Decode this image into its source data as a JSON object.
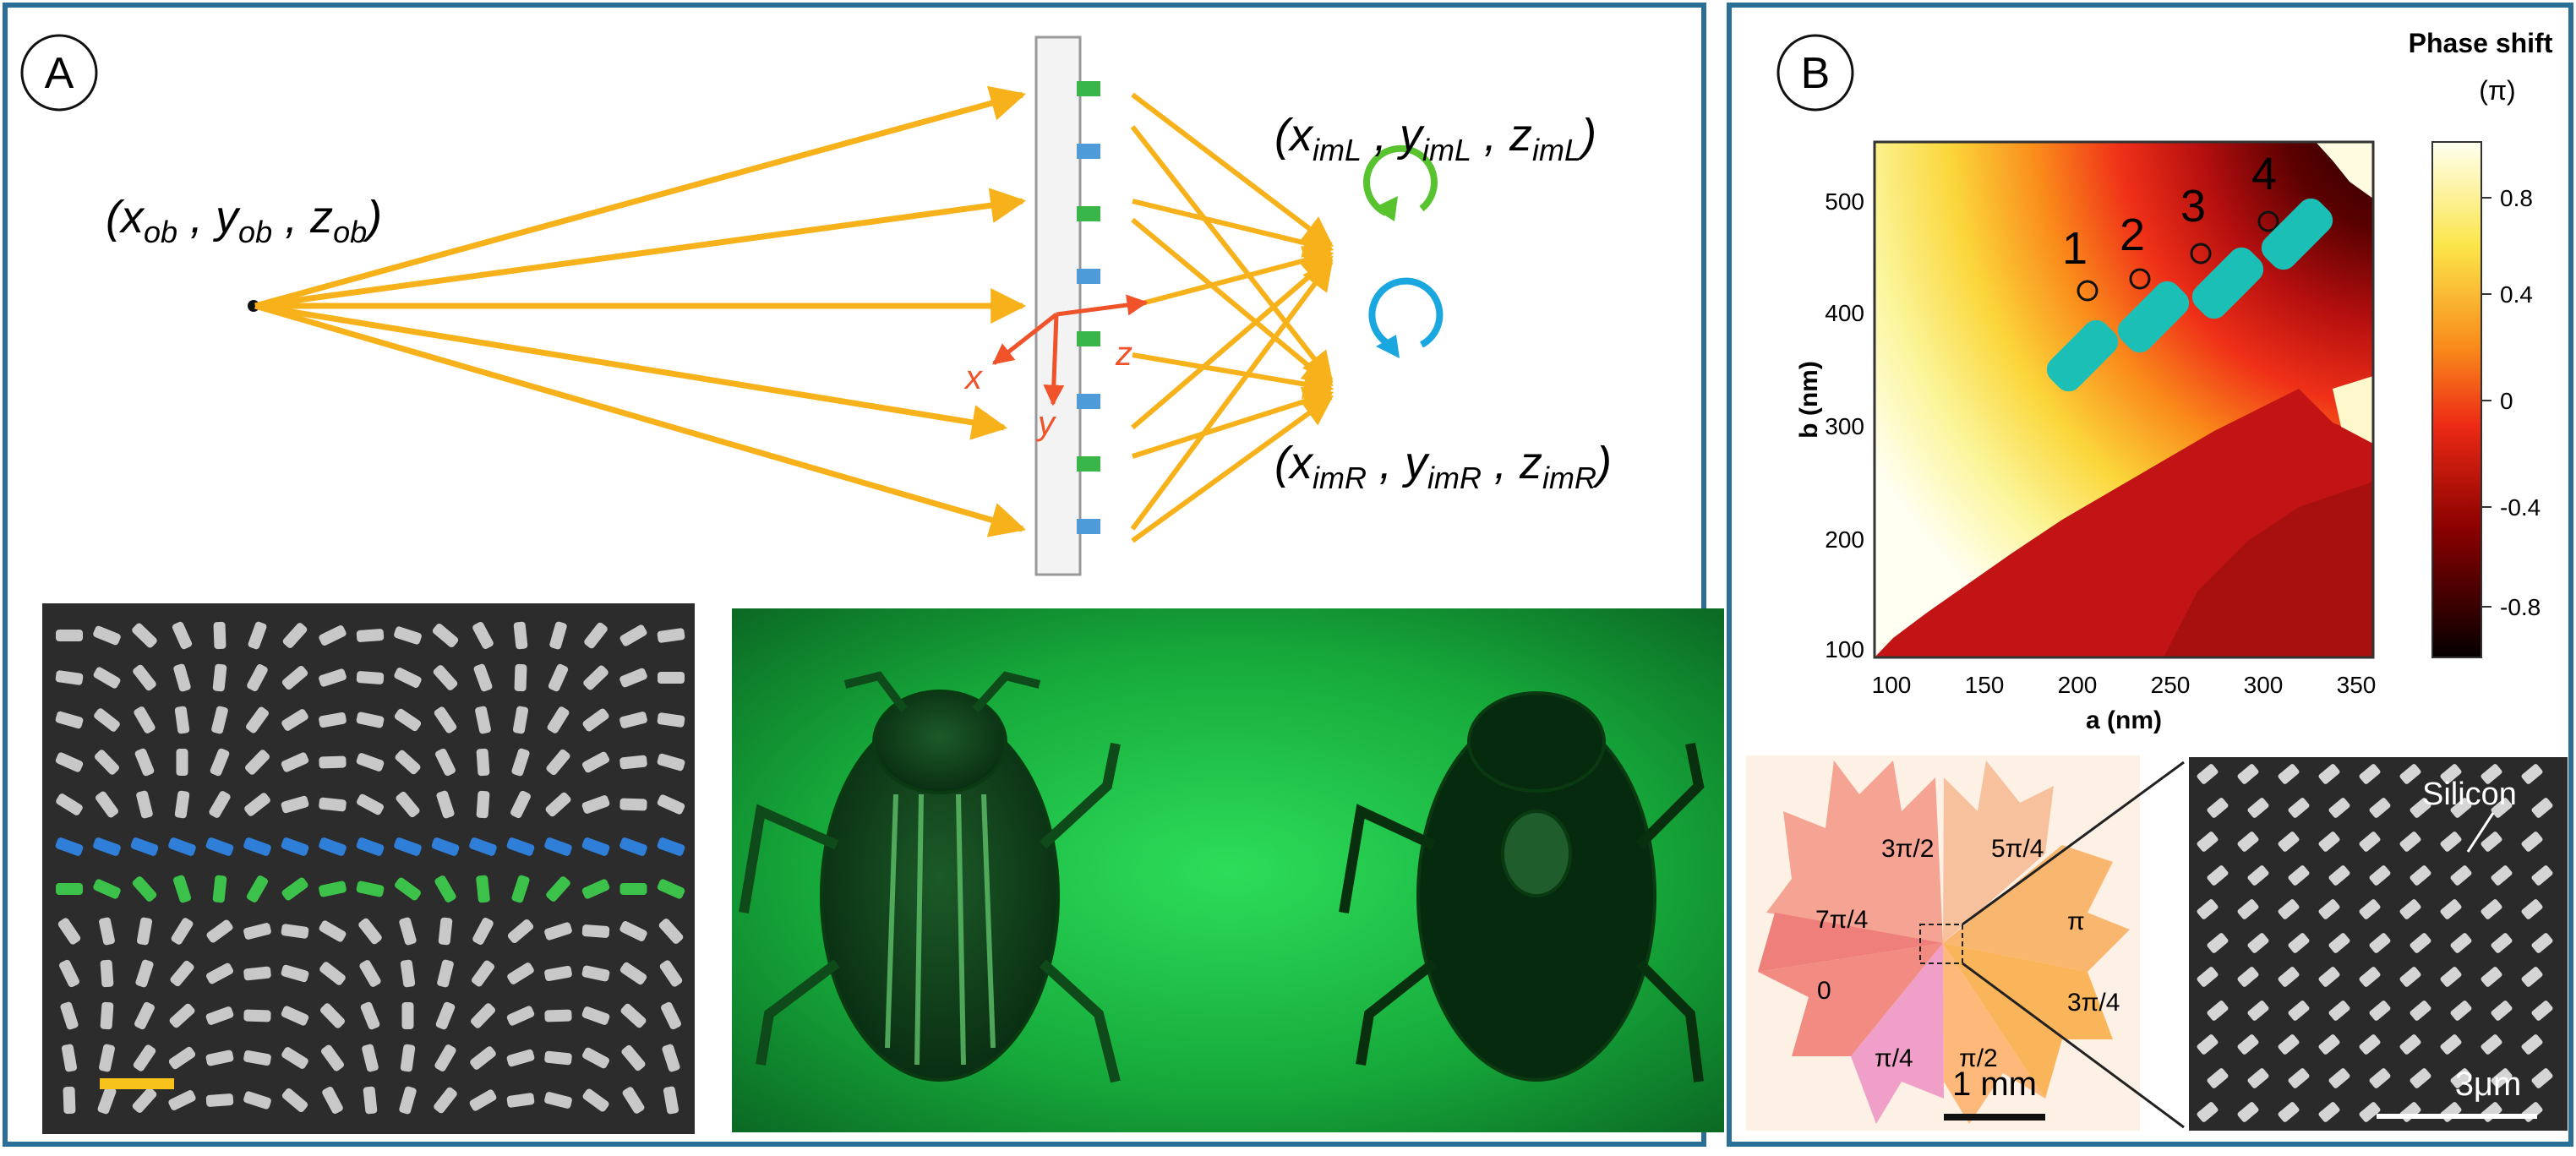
{
  "panel_a": {
    "label": "A",
    "object_point": {
      "pre": "(x",
      "s1": "ob",
      "mid1": " , y",
      "s2": "ob",
      "mid2": " , z",
      "s3": "ob",
      "post": ")"
    },
    "image_left": {
      "pre": "(x",
      "s1": "imL",
      "mid1": " , y",
      "s2": "imL",
      "mid2": " , z",
      "s3": "imL",
      "post": ")"
    },
    "image_right": {
      "pre": "(x",
      "s1": "imR",
      "mid1": " , y",
      "s2": "imR",
      "mid2": " , z",
      "s3": "imR",
      "post": ")"
    },
    "axes": {
      "x": "x",
      "y": "y",
      "z": "z"
    },
    "colors": {
      "rays": "#f7b21b",
      "axes": "#f0522a",
      "lcp": "#58c22f",
      "rcp": "#1aa7e0",
      "pillar_green": "#39b54a",
      "pillar_blue": "#4f9bd9"
    }
  },
  "panel_b": {
    "label": "B",
    "colorbar": {
      "title1": "Phase shift",
      "title2": "(π)",
      "ticks": [
        "0.8",
        "0.4",
        "0",
        "-0.4",
        "-0.8"
      ]
    },
    "heatmap": {
      "xlabel": "a (nm)",
      "ylabel": "b (nm)",
      "xticks": [
        "100",
        "150",
        "200",
        "250",
        "300",
        "350"
      ],
      "yticks": [
        "500",
        "400",
        "300",
        "200",
        "100"
      ],
      "markers": [
        "1",
        "2",
        "3",
        "4"
      ]
    },
    "sectors": [
      "3π/2",
      "5π/4",
      "7π/4",
      "π",
      "0",
      "3π/4",
      "π/4",
      "π/2"
    ],
    "scale_left": "1 mm",
    "scale_right": "3μm",
    "material": "Silicon"
  }
}
